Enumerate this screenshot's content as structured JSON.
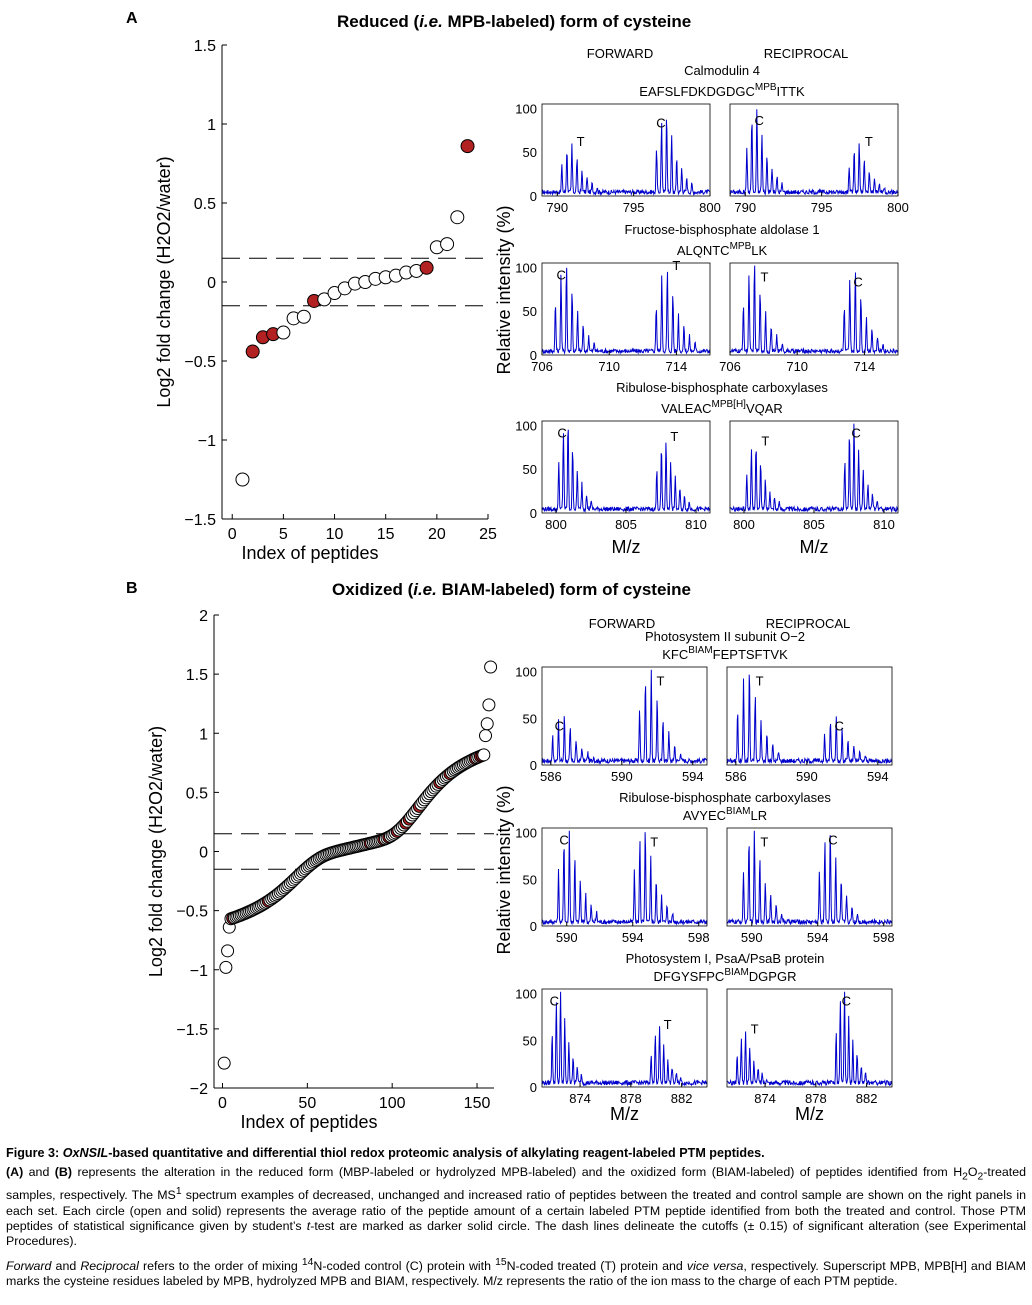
{
  "panel_a": {
    "letter": "A",
    "title_prefix": "Reduced (",
    "title_ie": "i.e.",
    "title_suffix": " MPB-labeled) form of cysteine"
  },
  "panel_b": {
    "letter": "B",
    "title_prefix": "Oxidized (",
    "title_ie": "i.e.",
    "title_suffix": " BIAM-labeled) form of cysteine"
  },
  "labels": {
    "ylabel_scatter": "Log2 fold change (H2O2/water)",
    "xlabel_scatter": "Index of peptides",
    "ylabel_spectra": "Relative intensity (%)",
    "xlabel_spectra": "M/z",
    "forward": "FORWARD",
    "reciprocal": "RECIPROCAL"
  },
  "colors": {
    "significant": "#b22222",
    "spectrum": "#0000cc",
    "open_marker": "#ffffff"
  },
  "chart_data": [
    {
      "id": "scatter-a",
      "type": "scatter",
      "xlabel": "Index of peptides",
      "ylabel": "Log2 fold change (H2O2/water)",
      "xlim": [
        -1,
        25
      ],
      "ylim": [
        -1.5,
        1.5
      ],
      "xticks": [
        0,
        5,
        10,
        15,
        20,
        25
      ],
      "yticks": [
        -1.5,
        -1,
        -0.5,
        0,
        0.5,
        1,
        1.5
      ],
      "ytick_labels": [
        "−1.5",
        "−1",
        "−0.5",
        "0",
        "0.5",
        "1",
        "1.5"
      ],
      "cutoffs": [
        0.15,
        -0.15
      ],
      "x": [
        1,
        2,
        3,
        4,
        5,
        6,
        7,
        8,
        9,
        10,
        11,
        12,
        13,
        14,
        15,
        16,
        17,
        18,
        19,
        20,
        21,
        22,
        23
      ],
      "y": [
        -1.25,
        -0.44,
        -0.35,
        -0.33,
        -0.32,
        -0.23,
        -0.22,
        -0.12,
        -0.11,
        -0.07,
        -0.04,
        -0.01,
        0.0,
        0.02,
        0.03,
        0.04,
        0.06,
        0.07,
        0.09,
        0.22,
        0.24,
        0.41,
        0.86
      ],
      "significant": [
        false,
        true,
        true,
        true,
        false,
        false,
        false,
        true,
        false,
        false,
        false,
        false,
        false,
        false,
        false,
        false,
        false,
        false,
        true,
        false,
        false,
        false,
        true
      ]
    },
    {
      "id": "scatter-b",
      "type": "scatter",
      "xlabel": "Index of peptides",
      "ylabel": "Log2 fold change (H2O2/water)",
      "xlim": [
        -5,
        160
      ],
      "ylim": [
        -2,
        2
      ],
      "xticks": [
        0,
        50,
        100,
        150
      ],
      "yticks": [
        -2,
        -1.5,
        -1,
        -0.5,
        0,
        0.5,
        1,
        1.5,
        2
      ],
      "ytick_labels": [
        "−2",
        "−1.5",
        "−1",
        "−0.5",
        "0",
        "0.5",
        "1",
        "1.5",
        "2"
      ],
      "cutoffs": [
        0.15,
        -0.15
      ],
      "n_points": 158,
      "significant_index": [
        6,
        27,
        87,
        95,
        98,
        103,
        108,
        110,
        116,
        128,
        134,
        149,
        152,
        153
      ]
    },
    {
      "id": "spectra-a",
      "type": "line",
      "ylabel": "Relative intensity (%)",
      "xlabel": "M/z",
      "yticks": [
        0,
        50,
        100
      ],
      "rows": [
        {
          "protein": "Calmodulin 4",
          "peptide": "EAFSLFDKDGDGC",
          "label_sup": "MPB",
          "peptide_tail": "ITTK",
          "xlim": [
            789,
            800
          ],
          "xticks": [
            790,
            795,
            800
          ],
          "forward": {
            "t_mz": 791.2,
            "c_mz": 797.4,
            "t_height": 55,
            "c_height": 92
          },
          "reciprocal": {
            "t_mz": 797.7,
            "c_mz": 791.0,
            "t_height": 55,
            "c_height": 95
          }
        },
        {
          "protein": "Fructose-bisphosphate  aldolase  1",
          "peptide": "ALQNTC",
          "label_sup": "MPB",
          "peptide_tail": "LK",
          "xlim": [
            706,
            716
          ],
          "xticks": [
            706,
            710,
            714
          ],
          "forward": {
            "t_mz": 713.7,
            "c_mz": 707.7,
            "t_height": 95,
            "c_height": 100
          },
          "reciprocal": {
            "t_mz": 707.7,
            "c_mz": 713.7,
            "t_height": 100,
            "c_height": 92
          }
        },
        {
          "protein": "Ribulose-bisphosphate  carboxylases",
          "peptide": "VALEAC",
          "label_sup": "MPB[H]",
          "peptide_tail": "VQAR",
          "xlim": [
            799,
            811
          ],
          "xticks": [
            800,
            805,
            810
          ],
          "forward": {
            "t_mz": 808.1,
            "c_mz": 801.1,
            "t_height": 80,
            "c_height": 100
          },
          "reciprocal": {
            "t_mz": 801.1,
            "c_mz": 808.1,
            "t_height": 75,
            "c_height": 100
          }
        }
      ]
    },
    {
      "id": "spectra-b",
      "type": "line",
      "ylabel": "Relative intensity (%)",
      "xlabel": "M/z",
      "yticks": [
        0,
        50,
        100
      ],
      "rows": [
        {
          "protein": "Photosystem  II subunit  O−2",
          "peptide": "KFC",
          "label_sup": "BIAM",
          "peptide_tail": "FEPTSFTVK",
          "xlim": [
            585.5,
            594.8
          ],
          "xticks": [
            586,
            590,
            594
          ],
          "forward": {
            "t_mz": 591.9,
            "c_mz": 587.0,
            "t_height": 100,
            "c_height": 50
          },
          "reciprocal": {
            "t_mz": 587.0,
            "c_mz": 591.9,
            "t_height": 100,
            "c_height": 50
          }
        },
        {
          "protein": "Ribulose-bisphosphate  carboxylases",
          "peptide": "AVYEC",
          "label_sup": "BIAM",
          "peptide_tail": "LR",
          "xlim": [
            588.5,
            598.5
          ],
          "xticks": [
            590,
            594,
            598
          ],
          "forward": {
            "t_mz": 595.0,
            "c_mz": 590.4,
            "t_height": 100,
            "c_height": 100
          },
          "reciprocal": {
            "t_mz": 590.4,
            "c_mz": 595.0,
            "t_height": 100,
            "c_height": 100
          }
        },
        {
          "protein": "Photosystem  I, PsaA/PsaB  protein",
          "peptide": "DFGYSFPC",
          "label_sup": "BIAM",
          "peptide_tail": "DGPGR",
          "xlim": [
            871,
            884
          ],
          "xticks": [
            874,
            878,
            882
          ],
          "forward": {
            "t_mz": 880.5,
            "c_mz": 872.7,
            "t_height": 60,
            "c_height": 100
          },
          "reciprocal": {
            "t_mz": 872.7,
            "c_mz": 880.5,
            "t_height": 55,
            "c_height": 100
          }
        }
      ]
    }
  ],
  "caption": {
    "figure_label": "Figure 3: ",
    "title_italic": "OxNSIL",
    "title_rest": "-based quantitative and differential thiol redox proteomic analysis of alkylating reagent-labeled PTM peptides.",
    "p1_a": "(A)",
    "p1_and": " and ",
    "p1_b": "(B)",
    "p1_text1": " represents the alteration in the reduced form (MBP-labeled or hydrolyzed MPB-labeled) and the oxidized form (BIAM-labeled) of peptides identified from H",
    "p1_sub1": "2",
    "p1_o": "O",
    "p1_sub2": "2",
    "p1_text2": "-treated samples, respectively. The MS",
    "p1_sup": "1",
    "p1_text3": " spectrum examples of decreased, unchanged and increased ratio of peptides between the treated and control sample are shown on the right panels in each set. Each circle (open and solid) represents the average ratio of the peptide amount of a certain labeled PTM peptide identified from both the treated and control. Those PTM peptides of statistical significance given by student’s ",
    "p1_t": "t",
    "p1_text4": "-test are marked as darker solid circle. The dash lines delineate the cutoffs (± 0.15) of significant alteration (see Experimental Procedures).",
    "p2_forward": "Forward",
    "p2_and": " and ",
    "p2_reciprocal": "Reciprocal",
    "p2_text1": " refers to the order of mixing ",
    "p2_sup14": "14",
    "p2_text2": "N-coded control (C) protein with ",
    "p2_sup15": "15",
    "p2_text3": "N-coded treated (T) protein and ",
    "p2_vv": "vice versa",
    "p2_text4": ", respectively. Superscript MPB, MPB[H] and BIAM marks the cysteine residues labeled by MPB, hydrolyzed MPB and BIAM, respectively. M/z represents the ratio of the ion mass to the charge of each PTM peptide."
  }
}
